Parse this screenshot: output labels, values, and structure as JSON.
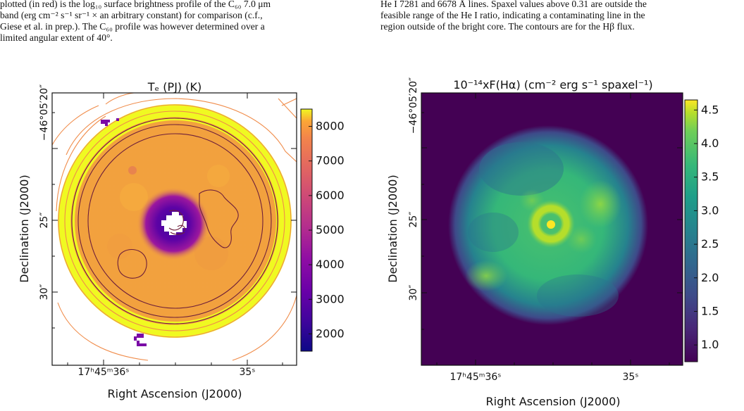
{
  "captions": {
    "left": {
      "line1": "plotted (in red) is the log₁₀ surface brightness profile of the C₆₀ 7.0 μm",
      "line2": "band (erg cm⁻² s⁻¹ sr⁻¹ × an arbitrary constant) for comparison (c.f.,",
      "line3": "Giese et al. in prep.). The C₆₀ profile was however determined over a",
      "line4": "limited angular extent of 40°."
    },
    "right": {
      "line1": "He I 7281 and 6678 Å lines. Spaxel values above 0.31 are outside the",
      "line2": "feasible range of the He I ratio, indicating a contaminating line in the",
      "line3": "region outside of the bright core. The contours are for the Hβ flux."
    }
  },
  "chart_data": [
    {
      "type": "heatmap",
      "title": "Tₑ (PJ) (K)",
      "xlabel": "Right Ascension (J2000)",
      "ylabel": "Declination (J2000)",
      "x_tick_labels": [
        "17ʰ45ᵐ36ˢ",
        "35ˢ"
      ],
      "y_tick_labels": [
        "−46°05′20″",
        "25″",
        "30″"
      ],
      "colorbar": {
        "ticks": [
          2000,
          3000,
          4000,
          5000,
          6000,
          7000,
          8000
        ],
        "range": [
          1500,
          8500
        ],
        "colormap": "plasma"
      },
      "features": {
        "disk_value": 6700,
        "rim_value": 8500,
        "core_value": 2300,
        "center": "masked",
        "contours": "Hβ flux"
      },
      "colors": {
        "disk": "#f2a13e",
        "rim": "#f0f921",
        "core": "#5d03a5",
        "contour_outer": "#f08c4a",
        "contour_inner": "#6e1f3a"
      }
    },
    {
      "type": "heatmap",
      "title": "10⁻¹⁴xF(Hα) (cm⁻² erg s⁻¹ spaxel⁻¹)",
      "xlabel": "Right Ascension (J2000)",
      "ylabel": "Declination (J2000)",
      "x_tick_labels": [
        "17ʰ45ᵐ36ˢ",
        "35ˢ"
      ],
      "y_tick_labels": [
        "−46°05′20″",
        "25″",
        "30″"
      ],
      "colorbar": {
        "ticks": [
          1.0,
          1.5,
          2.0,
          2.5,
          3.0,
          3.5,
          4.0,
          4.5
        ],
        "range": [
          0.75,
          4.65
        ],
        "colormap": "viridis"
      },
      "features": {
        "background_value": 0.8,
        "disk_value": 2.8,
        "inner_ring_value": 4.3,
        "center_value": 4.6
      },
      "colors": {
        "background": "#440154",
        "disk": "#35b779",
        "inner_ring": "#b5de2b",
        "center": "#fde725"
      }
    }
  ]
}
